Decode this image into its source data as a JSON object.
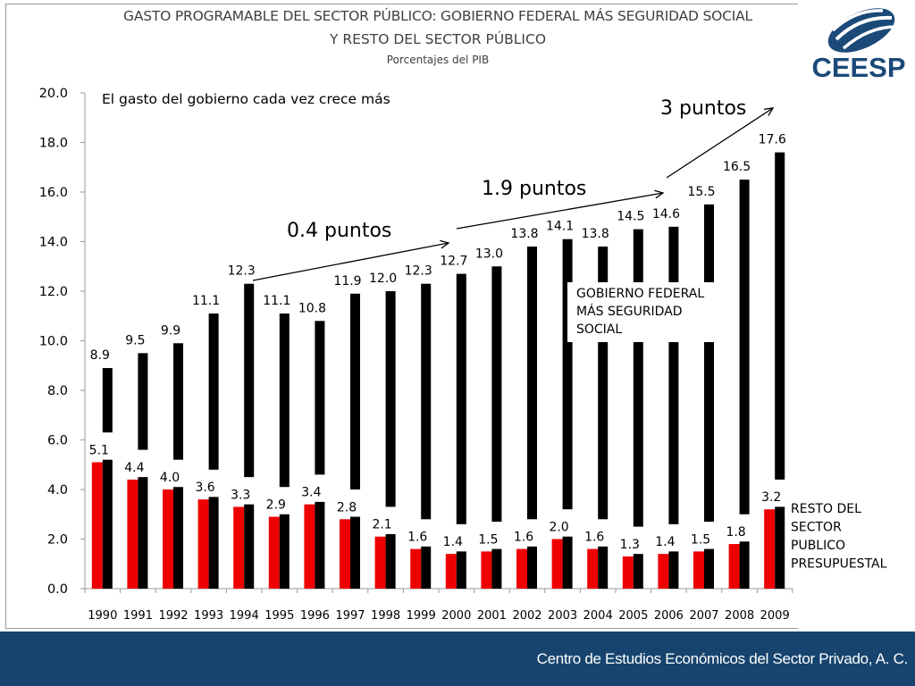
{
  "header": {
    "title_line1": "GASTO PROGRAMABLE DEL SECTOR PÚBLICO: GOBIERNO FEDERAL MÁS SEGURIDAD SOCIAL",
    "title_line2": "Y RESTO DEL SECTOR PÚBLICO",
    "subtitle": "Porcentajes del PIB"
  },
  "logo": {
    "text": "CEESP",
    "color": "#1b4a78"
  },
  "footer": {
    "text": "Centro de Estudios Económicos del Sector Privado, A. C.",
    "background": "#17446e"
  },
  "chart_data": {
    "type": "bar",
    "title": "GASTO PROGRAMABLE DEL SECTOR PÚBLICO: GOBIERNO FEDERAL MÁS SEGURIDAD SOCIAL Y RESTO DEL SECTOR PÚBLICO",
    "subtitle": "Porcentajes del PIB",
    "xlabel": "",
    "ylabel": "",
    "ylim": [
      0,
      20
    ],
    "yticks": [
      "0.0",
      "2.0",
      "4.0",
      "6.0",
      "8.0",
      "10.0",
      "12.0",
      "14.0",
      "16.0",
      "18.0",
      "20.0"
    ],
    "grid": false,
    "categories": [
      "1990",
      "1991",
      "1992",
      "1993",
      "1994",
      "1995",
      "1996",
      "1997",
      "1998",
      "1999",
      "2000",
      "2001",
      "2002",
      "2003",
      "2004",
      "2005",
      "2006",
      "2007",
      "2008",
      "2009"
    ],
    "series": [
      {
        "name": "RESTO DEL SECTOR PUBLICO PRESUPUESTAL",
        "color": "#ee0000",
        "values": [
          5.1,
          4.4,
          4.0,
          3.6,
          3.3,
          2.9,
          3.4,
          2.8,
          2.1,
          1.6,
          1.4,
          1.5,
          1.6,
          2.0,
          1.6,
          1.3,
          1.4,
          1.5,
          1.8,
          3.2
        ],
        "labels": [
          "5.1",
          "4.4",
          "4.0",
          "3.6",
          "3.3",
          "2.9",
          "3.4",
          "2.8",
          "2.1",
          "1.6",
          "1.4",
          "1.5",
          "1.6",
          "2.0",
          "1.6",
          "1.3",
          "1.4",
          "1.5",
          "1.8",
          "3.2"
        ]
      },
      {
        "name": "GOBIERNO FEDERAL MÁS SEGURIDAD SOCIAL",
        "color": "#000000",
        "values": [
          8.9,
          9.5,
          9.9,
          11.1,
          12.3,
          11.1,
          10.8,
          11.9,
          12.0,
          12.3,
          12.7,
          13.0,
          13.8,
          14.1,
          13.8,
          14.5,
          14.6,
          15.5,
          16.5,
          17.6
        ],
        "labels": [
          "8.9",
          "9.5",
          "9.9",
          "11.1",
          "12.3",
          "11.1",
          "10.8",
          "11.9",
          "12.0",
          "12.3",
          "12.7",
          "13.0",
          "13.8",
          "14.1",
          "13.8",
          "14.5",
          "14.6",
          "15.5",
          "16.5",
          "17.6"
        ]
      }
    ],
    "legend": [
      {
        "text_lines": [
          "GOBIERNO FEDERAL",
          "MÁS SEGURIDAD",
          "SOCIAL"
        ],
        "placement": "center-right"
      },
      {
        "text_lines": [
          "RESTO DEL",
          "SECTOR",
          "PUBLICO",
          "PRESUPUESTAL"
        ],
        "placement": "bottom-right"
      }
    ],
    "annotations": [
      {
        "text": "El gasto del gobierno cada vez crece más",
        "placement": "top-left"
      },
      {
        "text": "0.4 puntos",
        "from_year": "1994",
        "to_year": "2000",
        "from_value": 12.3,
        "to_value": 12.7
      },
      {
        "text": "1.9 puntos",
        "from_year": "2000",
        "to_year": "2006",
        "from_value": 12.7,
        "to_value": 14.6
      },
      {
        "text": "3 puntos",
        "from_year": "2006",
        "to_year": "2009",
        "from_value": 14.6,
        "to_value": 17.6
      }
    ]
  }
}
